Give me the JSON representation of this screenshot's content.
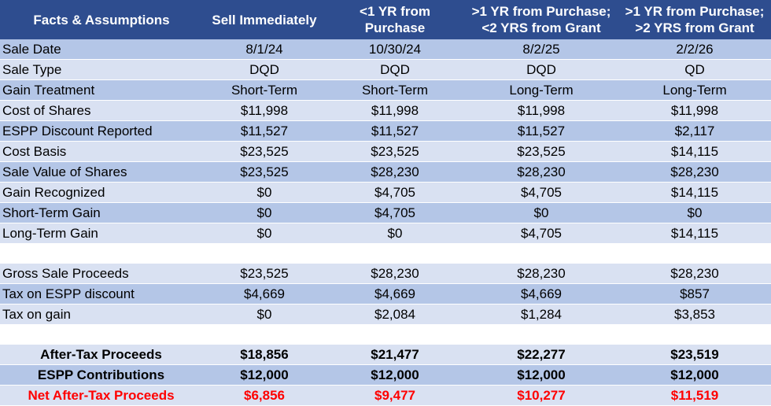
{
  "headers": [
    [
      "Facts & Assumptions"
    ],
    [
      "Sell Immediately"
    ],
    [
      "<1 YR from Purchase"
    ],
    [
      ">1 YR from Purchase;",
      "<2 YRS from Grant"
    ],
    [
      ">1 YR from Purchase;",
      ">2 YRS from Grant"
    ]
  ],
  "rows": [
    {
      "label": "Sale Date",
      "values": [
        "8/1/24",
        "10/30/24",
        "8/2/25",
        "2/2/26"
      ]
    },
    {
      "label": "Sale Type",
      "values": [
        "DQD",
        "DQD",
        "DQD",
        "QD"
      ]
    },
    {
      "label": "Gain Treatment",
      "values": [
        "Short-Term",
        "Short-Term",
        "Long-Term",
        "Long-Term"
      ]
    },
    {
      "label": "Cost of Shares",
      "values": [
        "$11,998",
        "$11,998",
        "$11,998",
        "$11,998"
      ]
    },
    {
      "label": "ESPP Discount Reported",
      "values": [
        "$11,527",
        "$11,527",
        "$11,527",
        "$2,117"
      ]
    },
    {
      "label": "Cost Basis",
      "values": [
        "$23,525",
        "$23,525",
        "$23,525",
        "$14,115"
      ]
    },
    {
      "label": "Sale Value of Shares",
      "values": [
        "$23,525",
        "$28,230",
        "$28,230",
        "$28,230"
      ]
    },
    {
      "label": "Gain Recognized",
      "values": [
        "$0",
        "$4,705",
        "$4,705",
        "$14,115"
      ]
    },
    {
      "label": "Short-Term Gain",
      "values": [
        "$0",
        "$4,705",
        "$0",
        "$0"
      ]
    },
    {
      "label": "Long-Term Gain",
      "values": [
        "$0",
        "$0",
        "$4,705",
        "$14,115"
      ]
    }
  ],
  "proceeds_rows": [
    {
      "label": "Gross Sale Proceeds",
      "values": [
        "$23,525",
        "$28,230",
        "$28,230",
        "$28,230"
      ]
    },
    {
      "label": "Tax on ESPP discount",
      "values": [
        "$4,669",
        "$4,669",
        "$4,669",
        "$857"
      ]
    },
    {
      "label": "Tax on gain",
      "values": [
        "$0",
        "$2,084",
        "$1,284",
        "$3,853"
      ]
    }
  ],
  "summary_rows": [
    {
      "label": "After-Tax Proceeds",
      "values": [
        "$18,856",
        "$21,477",
        "$22,277",
        "$23,519"
      ]
    },
    {
      "label": "ESPP Contributions",
      "values": [
        "$12,000",
        "$12,000",
        "$12,000",
        "$12,000"
      ]
    },
    {
      "label": "Net After-Tax Proceeds",
      "values": [
        "$6,856",
        "$9,477",
        "$10,277",
        "$11,519"
      ]
    }
  ],
  "colors": {
    "header_bg": "#2e4d8f",
    "row_dark": "#b4c6e7",
    "row_light": "#d9e1f2",
    "net_text": "#ff0000"
  }
}
